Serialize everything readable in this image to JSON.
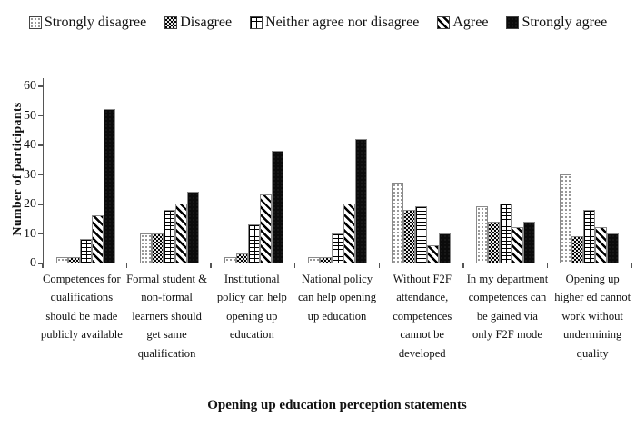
{
  "colors": {
    "ink": "#111111",
    "axis": "#555555",
    "bar_border": "#8a8a8a",
    "background": "#ffffff"
  },
  "chart_data": {
    "type": "bar",
    "title": "",
    "xlabel": "Opening up education perception statements",
    "ylabel": "Number of participants",
    "ylim": [
      0,
      60
    ],
    "yticks": [
      0,
      10,
      20,
      30,
      40,
      50,
      60
    ],
    "grid": false,
    "legend_position": "top",
    "categories": [
      "Competences for qualifications should be made publicly available",
      "Formal student & non-formal learners should get same qualification",
      "Institutional policy can help opening up education",
      "National policy can help opening up education",
      "Without F2F attendance, competences cannot be developed",
      "In my department competences can be gained via only F2F mode",
      "Opening up higher ed cannot work without undermining quality"
    ],
    "series": [
      {
        "name": "Strongly disagree",
        "pattern": "dots",
        "values": [
          2,
          10,
          2,
          2,
          27,
          19,
          30
        ]
      },
      {
        "name": "Disagree",
        "pattern": "checker",
        "values": [
          2,
          10,
          3,
          2,
          18,
          14,
          9
        ]
      },
      {
        "name": "Neither agree nor disagree",
        "pattern": "bricks",
        "values": [
          8,
          18,
          13,
          10,
          19,
          20,
          18
        ]
      },
      {
        "name": "Agree",
        "pattern": "diag",
        "values": [
          16,
          20,
          23,
          20,
          6,
          12,
          12
        ]
      },
      {
        "name": "Strongly agree",
        "pattern": "solid",
        "values": [
          52,
          24,
          38,
          42,
          10,
          14,
          10
        ]
      }
    ]
  }
}
